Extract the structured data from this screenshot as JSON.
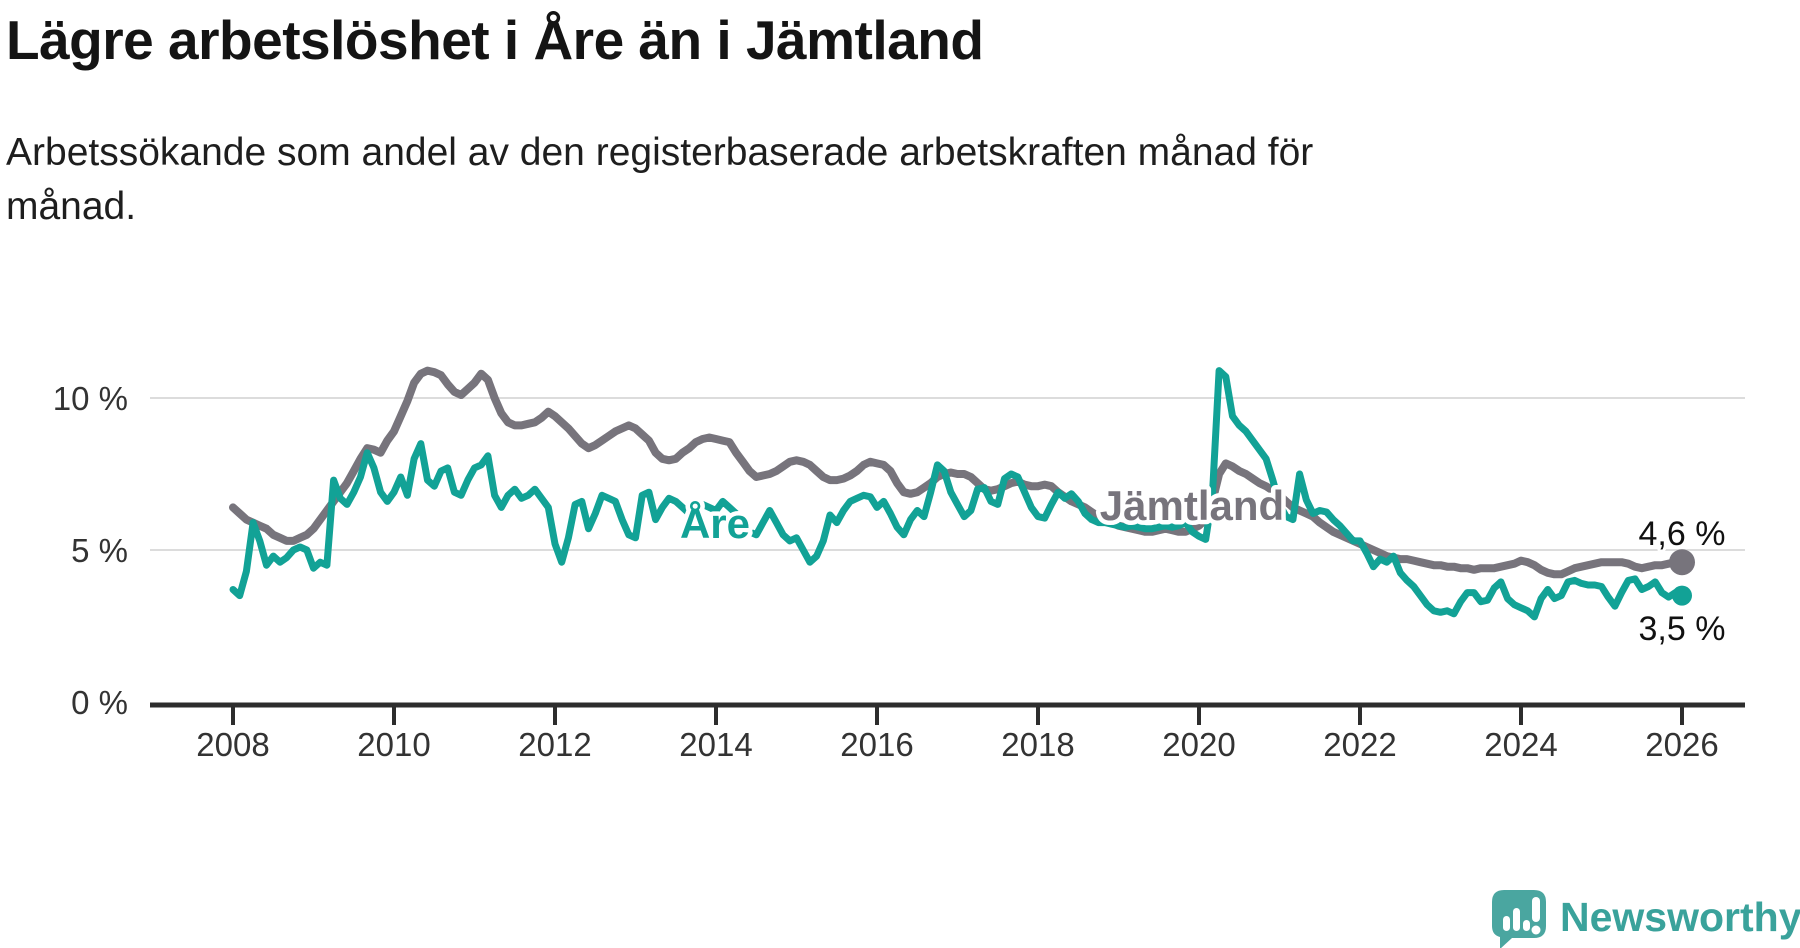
{
  "header": {
    "title": "Lägre arbetslöshet i Åre än i Jämtland",
    "subtitle_line1": "Arbetssökande som andel av den registerbaserade arbetskraften månad för",
    "subtitle_line2": "månad."
  },
  "colors": {
    "jamtland": "#77747c",
    "are": "#12a296",
    "grid": "#dcdcdc",
    "axis": "#2d2d2d",
    "logo_pin": "#4aa6a0",
    "logo_text": "#3aa29b"
  },
  "chart_data": {
    "type": "line",
    "title": "Lägre arbetslöshet i Åre än i Jämtland",
    "subtitle": "Arbetssökande som andel av den registerbaserade arbetskraften månad för månad.",
    "unit": "%",
    "grid": "horizontal",
    "legend_position": "inline-labels-on-lines",
    "frequency": "monthly",
    "start": "2008-01",
    "end": "2026-01",
    "ylim": [
      0,
      11.5
    ],
    "x_axis": {
      "ticks": [
        "2008",
        "2010",
        "2012",
        "2014",
        "2016",
        "2018",
        "2020",
        "2022",
        "2024",
        "2026"
      ]
    },
    "y_axis": {
      "ticks": [
        "0 %",
        "5 %",
        "10 %"
      ],
      "values": [
        0,
        5,
        10
      ]
    },
    "series": [
      {
        "name": "Jämtland",
        "color": "#77747c",
        "end_label": "4,6 %",
        "end_value": 4.6,
        "values": [
          6.4,
          6.2,
          6.0,
          5.9,
          5.8,
          5.7,
          5.5,
          5.4,
          5.3,
          5.3,
          5.4,
          5.5,
          5.7,
          6.0,
          6.3,
          6.6,
          6.9,
          7.2,
          7.6,
          8.0,
          8.35,
          8.3,
          8.2,
          8.6,
          8.9,
          9.4,
          9.9,
          10.5,
          10.8,
          10.9,
          10.85,
          10.75,
          10.45,
          10.2,
          10.1,
          10.3,
          10.5,
          10.8,
          10.6,
          10.0,
          9.5,
          9.2,
          9.1,
          9.1,
          9.15,
          9.2,
          9.35,
          9.55,
          9.4,
          9.2,
          9.0,
          8.75,
          8.5,
          8.35,
          8.45,
          8.6,
          8.75,
          8.9,
          9.0,
          9.1,
          9.0,
          8.8,
          8.6,
          8.2,
          8.0,
          7.95,
          8.0,
          8.2,
          8.35,
          8.55,
          8.65,
          8.7,
          8.65,
          8.6,
          8.55,
          8.2,
          7.9,
          7.6,
          7.4,
          7.45,
          7.5,
          7.6,
          7.75,
          7.9,
          7.95,
          7.9,
          7.8,
          7.6,
          7.4,
          7.3,
          7.3,
          7.35,
          7.45,
          7.6,
          7.8,
          7.9,
          7.85,
          7.8,
          7.6,
          7.2,
          6.9,
          6.85,
          6.9,
          7.05,
          7.2,
          7.4,
          7.5,
          7.55,
          7.5,
          7.5,
          7.4,
          7.2,
          7.0,
          6.95,
          7.0,
          7.1,
          7.2,
          7.25,
          7.15,
          7.1,
          7.1,
          7.15,
          7.1,
          6.9,
          6.75,
          6.6,
          6.5,
          6.4,
          6.25,
          6.1,
          6.0,
          5.9,
          5.8,
          5.75,
          5.7,
          5.65,
          5.6,
          5.6,
          5.65,
          5.7,
          5.65,
          5.6,
          5.6,
          5.7,
          5.8,
          6.0,
          6.6,
          7.5,
          7.85,
          7.75,
          7.6,
          7.5,
          7.35,
          7.2,
          7.1,
          6.95,
          6.8,
          6.6,
          6.4,
          6.3,
          6.2,
          6.1,
          5.9,
          5.75,
          5.6,
          5.5,
          5.4,
          5.3,
          5.2,
          5.1,
          5.0,
          4.9,
          4.8,
          4.75,
          4.7,
          4.7,
          4.65,
          4.6,
          4.55,
          4.5,
          4.5,
          4.45,
          4.45,
          4.4,
          4.4,
          4.35,
          4.4,
          4.4,
          4.4,
          4.45,
          4.5,
          4.55,
          4.65,
          4.6,
          4.5,
          4.35,
          4.25,
          4.2,
          4.2,
          4.3,
          4.4,
          4.45,
          4.5,
          4.55,
          4.6,
          4.6,
          4.6,
          4.6,
          4.55,
          4.45,
          4.4,
          4.45,
          4.5,
          4.5,
          4.55,
          4.6,
          4.6
        ]
      },
      {
        "name": "Åre",
        "color": "#12a296",
        "end_label": "3,5 %",
        "end_value": 3.5,
        "values": [
          3.7,
          3.5,
          4.3,
          5.9,
          5.3,
          4.5,
          4.8,
          4.6,
          4.75,
          5.0,
          5.1,
          5.0,
          4.4,
          4.6,
          4.5,
          7.3,
          6.7,
          6.5,
          6.9,
          7.4,
          8.2,
          7.7,
          6.9,
          6.6,
          6.9,
          7.4,
          6.8,
          8.0,
          8.5,
          7.3,
          7.1,
          7.6,
          7.7,
          6.9,
          6.8,
          7.3,
          7.7,
          7.8,
          8.1,
          6.8,
          6.4,
          6.8,
          7.0,
          6.7,
          6.8,
          7.0,
          6.7,
          6.4,
          5.2,
          4.6,
          5.4,
          6.5,
          6.6,
          5.7,
          6.2,
          6.8,
          6.7,
          6.6,
          6.0,
          5.5,
          5.4,
          6.8,
          6.9,
          6.0,
          6.4,
          6.7,
          6.6,
          6.4,
          6.2,
          6.3,
          6.5,
          6.4,
          6.3,
          6.6,
          6.4,
          6.2,
          5.9,
          5.6,
          5.5,
          5.9,
          6.3,
          5.9,
          5.5,
          5.3,
          5.4,
          5.0,
          4.6,
          4.8,
          5.3,
          6.15,
          5.9,
          6.3,
          6.6,
          6.7,
          6.8,
          6.75,
          6.4,
          6.6,
          6.2,
          5.75,
          5.5,
          6.0,
          6.3,
          6.1,
          6.9,
          7.8,
          7.6,
          6.9,
          6.5,
          6.1,
          6.3,
          7.0,
          7.05,
          6.6,
          6.5,
          7.35,
          7.5,
          7.4,
          6.9,
          6.4,
          6.1,
          6.05,
          6.5,
          6.9,
          6.7,
          6.85,
          6.6,
          6.2,
          6.0,
          5.9,
          5.9,
          5.85,
          5.8,
          5.75,
          5.8,
          5.75,
          5.7,
          5.7,
          5.75,
          5.8,
          5.75,
          5.8,
          5.9,
          5.6,
          5.45,
          5.35,
          6.8,
          10.9,
          10.7,
          9.4,
          9.1,
          8.9,
          8.6,
          8.3,
          8.0,
          7.3,
          6.5,
          6.1,
          6.0,
          7.5,
          6.65,
          6.2,
          6.3,
          6.25,
          6.0,
          5.8,
          5.55,
          5.3,
          5.3,
          4.9,
          4.45,
          4.7,
          4.6,
          4.8,
          4.25,
          4.0,
          3.8,
          3.5,
          3.2,
          3.0,
          2.95,
          3.0,
          2.9,
          3.3,
          3.6,
          3.6,
          3.3,
          3.35,
          3.75,
          3.95,
          3.4,
          3.2,
          3.1,
          3.0,
          2.8,
          3.4,
          3.7,
          3.4,
          3.5,
          3.95,
          4.0,
          3.9,
          3.85,
          3.85,
          3.8,
          3.45,
          3.15,
          3.6,
          4.0,
          4.05,
          3.7,
          3.8,
          3.95,
          3.6,
          3.45,
          3.6,
          3.5
        ]
      }
    ]
  },
  "footer": {
    "brand": "Newsworthy"
  }
}
